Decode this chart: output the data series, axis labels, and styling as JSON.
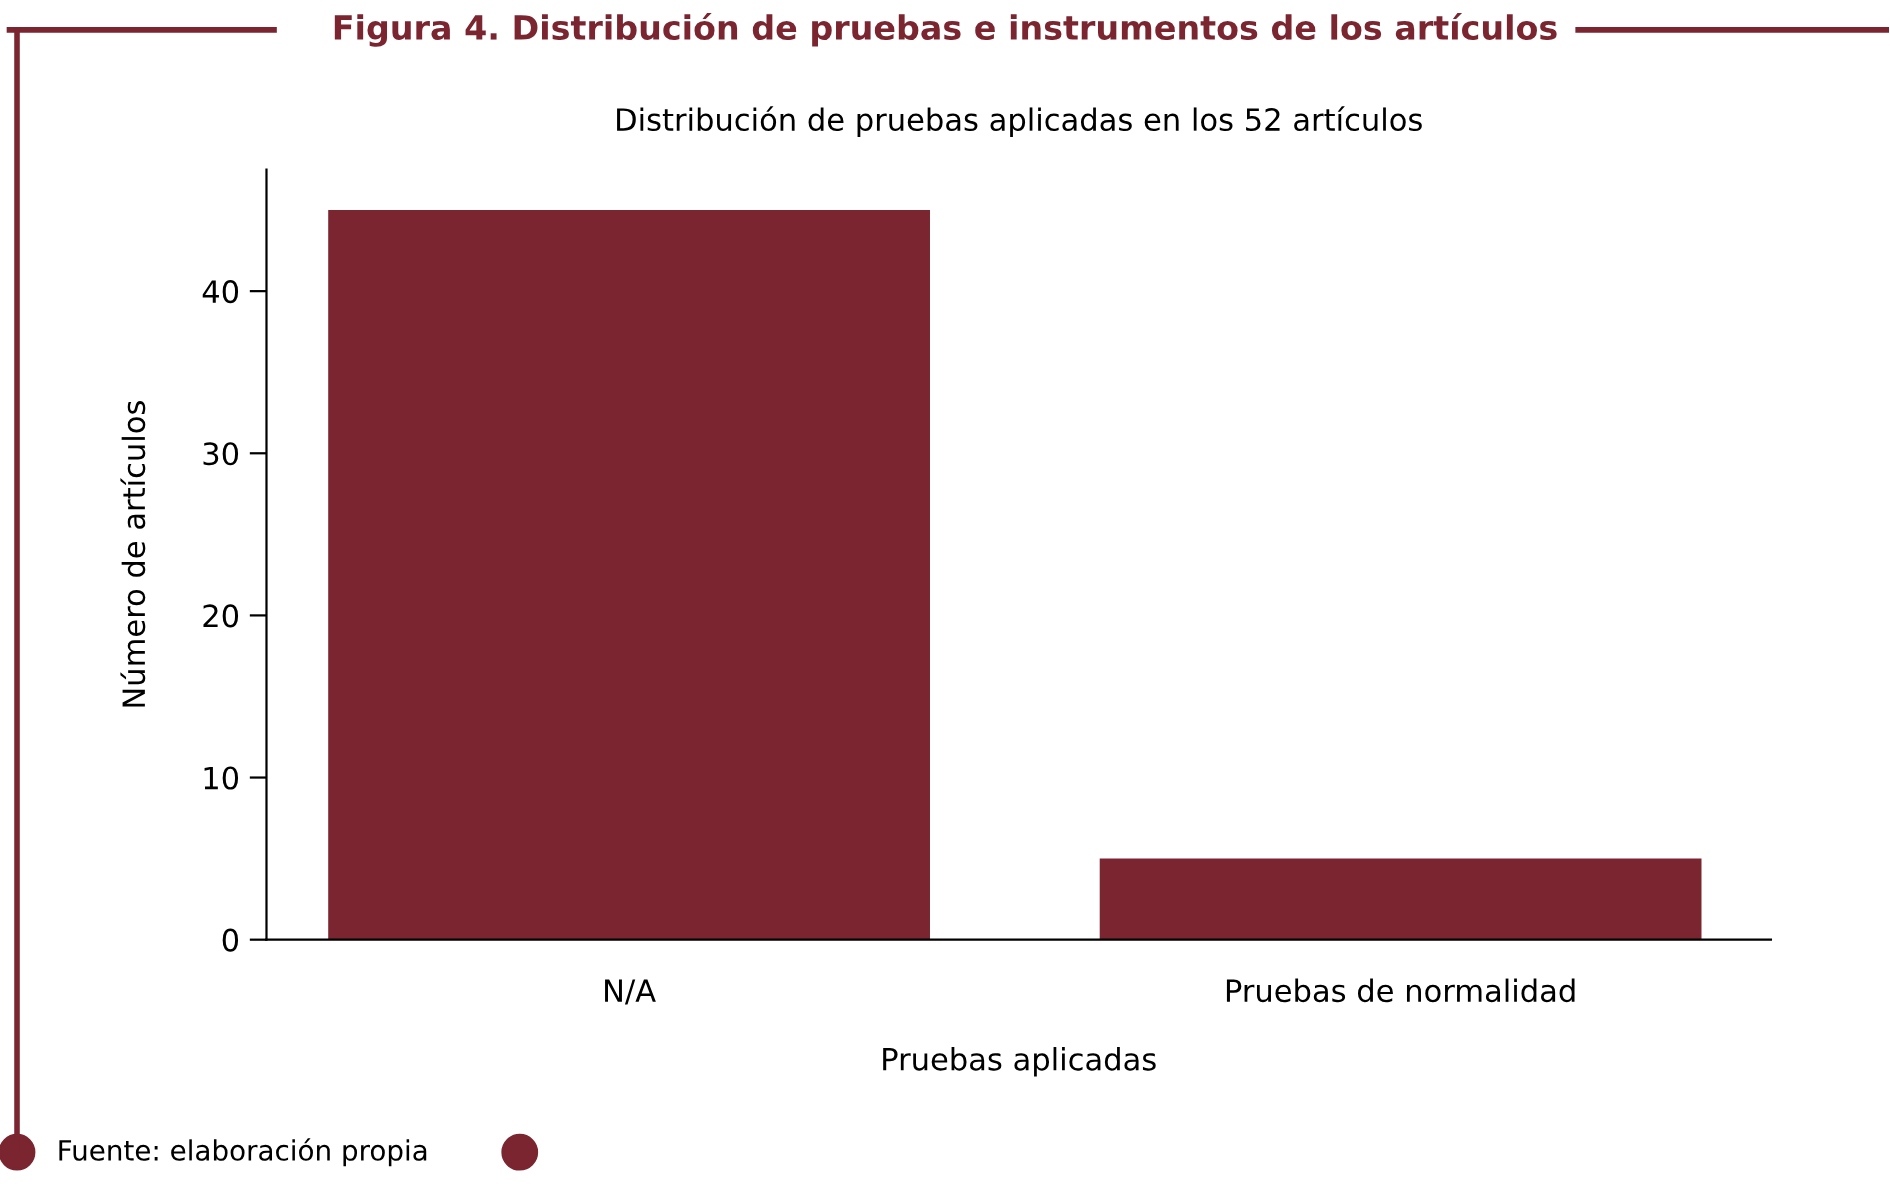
{
  "chart_data": {
    "type": "bar",
    "title": "Figura 4. Distribución de pruebas e instrumentos de los artículos",
    "subtitle": "Distribución de pruebas aplicadas en los 52 artículos",
    "xlabel": "Pruebas aplicadas",
    "ylabel": "Número de artículos",
    "categories": [
      "N/A",
      "Pruebas de normalidad"
    ],
    "values": [
      45,
      5
    ],
    "color": "#7a2530",
    "ylim": [
      0,
      47.5
    ],
    "yticks": [
      0,
      10,
      20,
      30,
      40
    ],
    "grid": false,
    "annotations": [
      "Fuente: elaboración propia"
    ]
  }
}
